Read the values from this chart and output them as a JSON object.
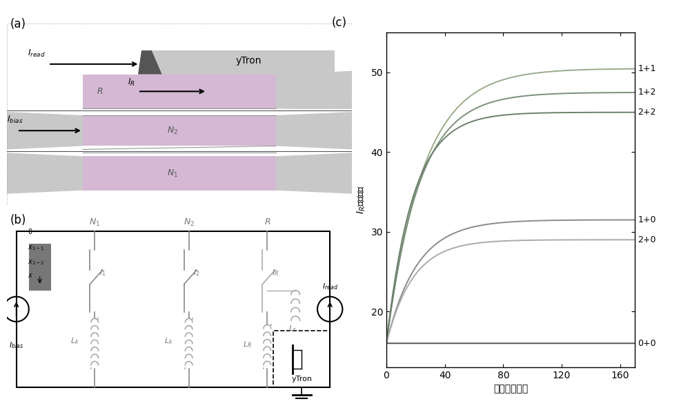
{
  "title_a": "(a)",
  "title_b": "(b)",
  "title_c": "(c)",
  "xlabel": "时间（皮秒）",
  "ylabel": "$I_R$（微安）",
  "xlim": [
    0,
    170
  ],
  "ylim": [
    13,
    55
  ],
  "xticks": [
    0,
    40,
    80,
    120,
    160
  ],
  "yticks": [
    20,
    30,
    40,
    50
  ],
  "curves": [
    {
      "label": "1+1",
      "color": "#9aaa8a",
      "asymptote": 50.5,
      "rate": 0.04,
      "y0": 16.0
    },
    {
      "label": "1+2",
      "color": "#7a8f7a",
      "asymptote": 47.5,
      "rate": 0.045,
      "y0": 16.0
    },
    {
      "label": "2+2",
      "color": "#6a806a",
      "asymptote": 45.0,
      "rate": 0.055,
      "y0": 16.0
    },
    {
      "label": "1+0",
      "color": "#8a8a8a",
      "asymptote": 31.5,
      "rate": 0.048,
      "y0": 16.0
    },
    {
      "label": "2+0",
      "color": "#aaaaaa",
      "asymptote": 29.0,
      "rate": 0.055,
      "y0": 16.0
    },
    {
      "label": "0+0",
      "color": "#555555",
      "asymptote": 16.0,
      "rate": 0.0,
      "y0": 16.0
    }
  ],
  "background_color": "#ffffff",
  "figure_width": 10.0,
  "figure_height": 5.91
}
